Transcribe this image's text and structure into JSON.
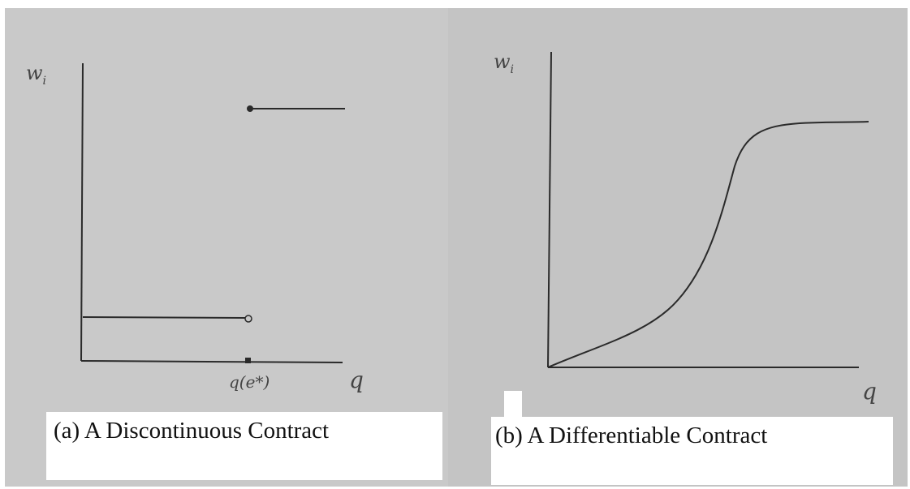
{
  "panels": [
    {
      "y_label": "w",
      "y_label_sub": "i",
      "threshold_label": "q(e*)",
      "x_label": "q",
      "caption": "(a) A Discontinuous Contract"
    },
    {
      "y_label": "w",
      "y_label_sub": "i",
      "x_label": "q",
      "caption": "(b) A Differentiable Contract"
    }
  ]
}
